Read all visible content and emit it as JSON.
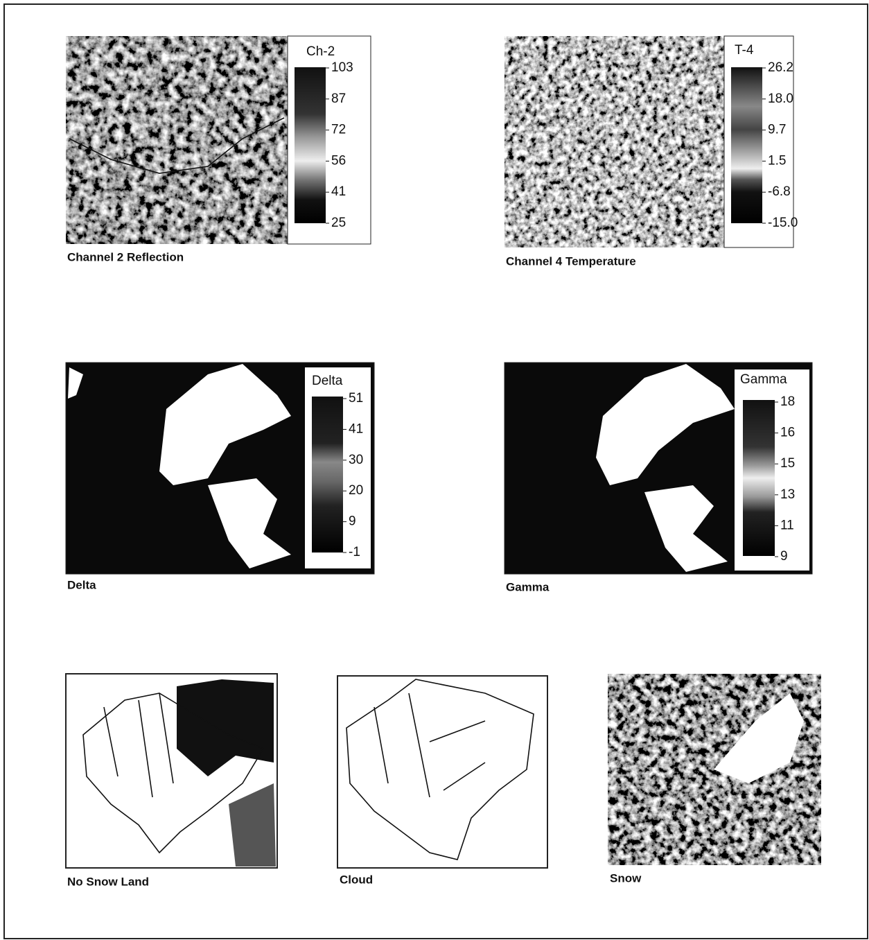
{
  "panels": [
    {
      "caption": "Channel 2  Reflection",
      "legend": {
        "title": "Ch-2",
        "ticks": [
          103,
          87,
          72,
          56,
          41,
          25
        ]
      }
    },
    {
      "caption": "Channel 4 Temperature",
      "legend": {
        "title": "T-4",
        "ticks": [
          26.2,
          {
            "value": 18,
            "label": "18.0"
          },
          9.7,
          1.5,
          -6.8,
          {
            "value": -15,
            "label": "-15.0"
          }
        ]
      }
    },
    {
      "caption": "Delta",
      "legend": {
        "title": "Delta",
        "ticks": [
          51,
          41,
          30,
          20,
          9,
          -1
        ]
      }
    },
    {
      "caption": "Gamma",
      "legend": {
        "title": "Gamma",
        "ticks": [
          18,
          16,
          15,
          13,
          11,
          9
        ]
      }
    },
    {
      "caption": "No Snow Land"
    },
    {
      "caption": "Cloud"
    },
    {
      "caption": "Snow"
    }
  ]
}
